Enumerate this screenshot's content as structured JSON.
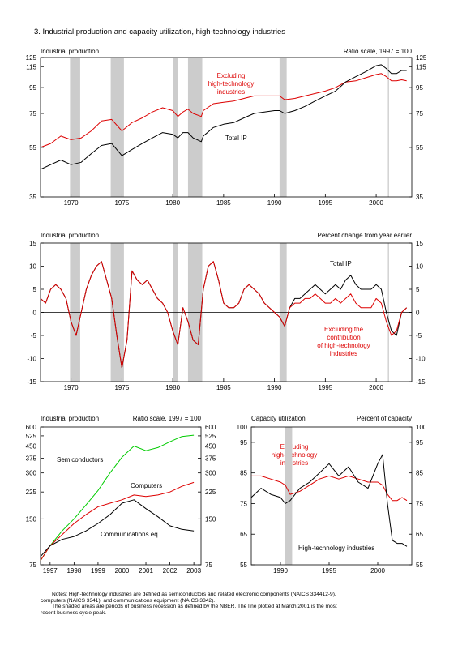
{
  "figure_title": "3.  Industrial production and capacity utilization, high-technology industries",
  "colors": {
    "black": "#000000",
    "red": "#dd0000",
    "green": "#00cc00",
    "recession": "#cccccc"
  },
  "notes": {
    "line1": "Notes:  High-technology industries are defined as semiconductors and related electronic components (NAICS 334412-9),",
    "line2": "computers (NAICS 3341), and communications equipment (NAICS 3342).",
    "line3": "The shaded areas are periods of business recession as defined by the NBER.  The line plotted at March 2001 is the most",
    "line4": "recent business cycle peak."
  },
  "chart_data": [
    {
      "type": "line",
      "title": "Industrial production",
      "subtitle": "Ratio scale, 1997 = 100",
      "scale": "log",
      "ylim": [
        35,
        125
      ],
      "yticks": [
        35,
        55,
        75,
        95,
        115,
        125
      ],
      "xlim": [
        1967,
        2003.5
      ],
      "xticks": [
        1970,
        1975,
        1980,
        1985,
        1990,
        1995,
        2000
      ],
      "recessions": [
        [
          1969.9,
          1970.9
        ],
        [
          1973.9,
          1975.2
        ],
        [
          1980.0,
          1980.5
        ],
        [
          1981.5,
          1982.9
        ],
        [
          1990.5,
          1991.2
        ]
      ],
      "peak_line": 2001.2,
      "annotations": [
        {
          "text": "Excluding",
          "color": "#dd0000"
        },
        {
          "text": "high-technology",
          "color": "#dd0000"
        },
        {
          "text": "industries",
          "color": "#dd0000"
        },
        {
          "text": "Total IP",
          "color": "#000000"
        }
      ],
      "series": [
        {
          "color": "#dd0000",
          "x": [
            1967,
            1968,
            1969,
            1970,
            1971,
            1972,
            1973,
            1974,
            1975,
            1976,
            1977,
            1978,
            1979,
            1980,
            1980.5,
            1981,
            1981.5,
            1982,
            1982.8,
            1983,
            1984,
            1985,
            1986,
            1987,
            1988,
            1989,
            1990,
            1990.5,
            1991,
            1992,
            1993,
            1994,
            1995,
            1996,
            1997,
            1998,
            1999,
            2000,
            2000.5,
            2001,
            2001.5,
            2002,
            2002.5,
            2003
          ],
          "y": [
            55,
            57,
            61,
            59,
            60,
            64,
            70,
            71,
            64,
            69,
            72,
            76,
            79,
            77,
            73,
            76,
            78,
            75,
            73,
            77,
            82,
            83,
            84,
            86,
            88,
            88,
            88,
            88,
            85,
            86,
            88,
            90,
            92,
            95,
            100,
            101,
            104,
            107,
            108,
            105,
            101,
            101,
            102,
            101
          ]
        },
        {
          "color": "#000000",
          "x": [
            1967,
            1968,
            1969,
            1970,
            1971,
            1972,
            1973,
            1974,
            1975,
            1976,
            1977,
            1978,
            1979,
            1980,
            1980.5,
            1981,
            1981.5,
            1982,
            1982.8,
            1983,
            1984,
            1985,
            1986,
            1987,
            1988,
            1989,
            1990,
            1990.5,
            1991,
            1992,
            1993,
            1994,
            1995,
            1996,
            1997,
            1998,
            1999,
            2000,
            2000.5,
            2001,
            2001.5,
            2002,
            2002.5,
            2003
          ],
          "y": [
            45,
            47,
            49,
            47,
            48,
            52,
            56,
            57,
            51,
            54,
            57,
            60,
            63,
            62,
            60,
            63,
            63,
            60,
            58,
            61,
            66,
            68,
            69,
            72,
            75,
            76,
            77,
            77,
            75,
            77,
            80,
            84,
            88,
            92,
            100,
            105,
            110,
            116,
            117,
            113,
            108,
            108,
            111,
            111
          ]
        }
      ]
    },
    {
      "type": "line",
      "title": "Industrial production",
      "subtitle": "Percent change from year earlier",
      "ylim": [
        -15,
        15
      ],
      "yticks": [
        -15,
        -10,
        -5,
        0,
        5,
        10,
        15
      ],
      "xlim": [
        1967,
        2003.5
      ],
      "xticks": [
        1970,
        1975,
        1980,
        1985,
        1990,
        1995,
        2000
      ],
      "recessions": [
        [
          1969.9,
          1970.9
        ],
        [
          1973.9,
          1975.2
        ],
        [
          1980.0,
          1980.5
        ],
        [
          1981.5,
          1982.9
        ],
        [
          1990.5,
          1991.2
        ]
      ],
      "peak_line": 2001.2,
      "annotations": [
        {
          "text": "Total IP",
          "color": "#000000"
        },
        {
          "text": "Excluding the",
          "color": "#dd0000"
        },
        {
          "text": "contribution",
          "color": "#dd0000"
        },
        {
          "text": "of high-technology",
          "color": "#dd0000"
        },
        {
          "text": "industries",
          "color": "#dd0000"
        }
      ],
      "series": [
        {
          "color": "#000000",
          "x": [
            1967,
            1967.5,
            1968,
            1968.5,
            1969,
            1969.5,
            1970,
            1970.5,
            1971,
            1971.5,
            1972,
            1972.5,
            1973,
            1973.5,
            1974,
            1974.5,
            1975,
            1975.5,
            1976,
            1976.5,
            1977,
            1977.5,
            1978,
            1978.5,
            1979,
            1979.5,
            1980,
            1980.5,
            1981,
            1981.5,
            1982,
            1982.5,
            1983,
            1983.5,
            1984,
            1984.5,
            1985,
            1985.5,
            1986,
            1986.5,
            1987,
            1987.5,
            1988,
            1988.5,
            1989,
            1989.5,
            1990,
            1990.5,
            1991,
            1991.5,
            1992,
            1992.5,
            1993,
            1993.5,
            1994,
            1994.5,
            1995,
            1995.5,
            1996,
            1996.5,
            1997,
            1997.5,
            1998,
            1998.5,
            1999,
            1999.5,
            2000,
            2000.5,
            2001,
            2001.5,
            2002,
            2002.5,
            2003
          ],
          "y": [
            3,
            2,
            5,
            6,
            5,
            3,
            -2,
            -5,
            0,
            5,
            8,
            10,
            11,
            7,
            3,
            -5,
            -12,
            -6,
            9,
            7,
            6,
            7,
            5,
            3,
            2,
            0,
            -4,
            -7,
            1,
            -2,
            -6,
            -7,
            5,
            10,
            11,
            7,
            2,
            1,
            1,
            2,
            5,
            6,
            5,
            4,
            2,
            1,
            0,
            -1,
            -3,
            1,
            3,
            3,
            4,
            5,
            6,
            5,
            4,
            5,
            6,
            5,
            7,
            8,
            6,
            5,
            5,
            5,
            6,
            5,
            0,
            -4,
            -5,
            0,
            1
          ]
        },
        {
          "color": "#dd0000",
          "x": [
            1967,
            1967.5,
            1968,
            1968.5,
            1969,
            1969.5,
            1970,
            1970.5,
            1971,
            1971.5,
            1972,
            1972.5,
            1973,
            1973.5,
            1974,
            1974.5,
            1975,
            1975.5,
            1976,
            1976.5,
            1977,
            1977.5,
            1978,
            1978.5,
            1979,
            1979.5,
            1980,
            1980.5,
            1981,
            1981.5,
            1982,
            1982.5,
            1983,
            1983.5,
            1984,
            1984.5,
            1985,
            1985.5,
            1986,
            1986.5,
            1987,
            1987.5,
            1988,
            1988.5,
            1989,
            1989.5,
            1990,
            1990.5,
            1991,
            1991.5,
            1992,
            1992.5,
            1993,
            1993.5,
            1994,
            1994.5,
            1995,
            1995.5,
            1996,
            1996.5,
            1997,
            1997.5,
            1998,
            1998.5,
            1999,
            1999.5,
            2000,
            2000.5,
            2001,
            2001.5,
            2002,
            2002.5,
            2003
          ],
          "y": [
            3,
            2,
            5,
            6,
            5,
            3,
            -2,
            -5,
            0,
            5,
            8,
            10,
            11,
            7,
            3,
            -5,
            -12,
            -6,
            9,
            7,
            6,
            7,
            5,
            3,
            2,
            0,
            -4,
            -7,
            1,
            -2,
            -6,
            -7,
            5,
            10,
            11,
            7,
            2,
            1,
            1,
            2,
            5,
            6,
            5,
            4,
            2,
            1,
            0,
            -1,
            -3,
            1,
            2,
            2,
            3,
            3,
            4,
            3,
            2,
            2,
            3,
            2,
            3,
            4,
            2,
            1,
            1,
            1,
            3,
            2,
            -2,
            -5,
            -4,
            0,
            1
          ]
        }
      ]
    },
    {
      "type": "line",
      "title": "Industrial production",
      "subtitle": "Ratio scale, 1997 = 100",
      "scale": "log",
      "ylim": [
        75,
        600
      ],
      "yticks": [
        75,
        150,
        225,
        300,
        375,
        450,
        525,
        600
      ],
      "xlim": [
        1996.6,
        2003.3
      ],
      "xticks": [
        1997,
        1998,
        1999,
        2000,
        2001,
        2002,
        2003
      ],
      "series": [
        {
          "name": "Semiconductors",
          "color": "#00cc00",
          "x": [
            1996.6,
            1997,
            1997.5,
            1998,
            1998.5,
            1999,
            1999.5,
            2000,
            2000.5,
            2001,
            2001.5,
            2002,
            2002.5,
            2003
          ],
          "y": [
            80,
            100,
            125,
            150,
            185,
            230,
            300,
            380,
            450,
            420,
            440,
            480,
            520,
            530
          ]
        },
        {
          "name": "Computers",
          "color": "#dd0000",
          "x": [
            1996.6,
            1997,
            1997.5,
            1998,
            1998.5,
            1999,
            1999.5,
            2000,
            2000.5,
            2001,
            2001.5,
            2002,
            2002.5,
            2003
          ],
          "y": [
            80,
            100,
            118,
            140,
            160,
            180,
            190,
            200,
            215,
            210,
            215,
            225,
            245,
            260
          ]
        },
        {
          "name": "Communications eq.",
          "color": "#000000",
          "x": [
            1996.6,
            1997,
            1997.5,
            1998,
            1998.5,
            1999,
            1999.5,
            2000,
            2000.5,
            2001,
            2001.5,
            2002,
            2002.5,
            2003
          ],
          "y": [
            85,
            100,
            110,
            115,
            125,
            140,
            160,
            190,
            200,
            175,
            155,
            135,
            128,
            125
          ]
        }
      ]
    },
    {
      "type": "line",
      "title": "Capacity utilization",
      "subtitle": "Percent of capacity",
      "ylim": [
        55,
        100
      ],
      "yticks": [
        55,
        65,
        75,
        85,
        95,
        100
      ],
      "xlim": [
        1987,
        2003.5
      ],
      "xticks": [
        1990,
        1995,
        2000
      ],
      "recessions": [
        [
          1990.5,
          1991.2
        ]
      ],
      "annotations": [
        {
          "text": "Excluding",
          "color": "#dd0000"
        },
        {
          "text": "high-technology",
          "color": "#dd0000"
        },
        {
          "text": "industries",
          "color": "#dd0000"
        },
        {
          "text": "High-technology industries",
          "color": "#000000"
        }
      ],
      "series": [
        {
          "color": "#dd0000",
          "x": [
            1987,
            1988,
            1989,
            1990,
            1990.5,
            1991,
            1992,
            1993,
            1994,
            1995,
            1996,
            1997,
            1998,
            1999,
            2000,
            2000.5,
            2001,
            2001.5,
            2002,
            2002.5,
            2003
          ],
          "y": [
            84,
            84,
            83,
            82,
            81,
            78,
            79,
            81,
            83,
            84,
            83,
            84,
            83,
            82,
            82,
            81,
            78,
            76,
            76,
            77,
            76
          ]
        },
        {
          "color": "#000000",
          "x": [
            1987,
            1988,
            1989,
            1990,
            1990.5,
            1991,
            1992,
            1993,
            1994,
            1995,
            1996,
            1997,
            1998,
            1999,
            2000,
            2000.5,
            2001,
            2001.5,
            2002,
            2002.5,
            2003
          ],
          "y": [
            77,
            80,
            78,
            77,
            75,
            76,
            80,
            82,
            85,
            88,
            84,
            87,
            82,
            80,
            88,
            91,
            75,
            63,
            62,
            62,
            61
          ]
        }
      ]
    }
  ]
}
